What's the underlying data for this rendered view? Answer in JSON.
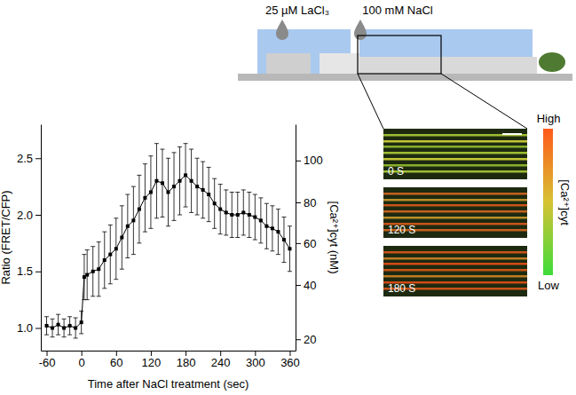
{
  "chart_data": {
    "type": "line",
    "x_label": "Time after NaCl treatment (sec)",
    "y_label": "Ratio (FRET/CFP)",
    "y2_label": "[Ca²⁺]cyt (nM)",
    "x": [
      -60,
      -50,
      -40,
      -30,
      -20,
      -10,
      0,
      5,
      10,
      20,
      30,
      40,
      50,
      60,
      70,
      80,
      90,
      100,
      110,
      120,
      130,
      140,
      150,
      160,
      170,
      180,
      190,
      200,
      210,
      220,
      230,
      240,
      250,
      260,
      270,
      280,
      290,
      300,
      310,
      320,
      330,
      340,
      350,
      360
    ],
    "series": [
      {
        "color": "#000000",
        "marker": "square",
        "line_style": "solid",
        "values": [
          1.02,
          1.0,
          1.03,
          1.0,
          1.02,
          1.0,
          1.05,
          1.45,
          1.47,
          1.5,
          1.52,
          1.6,
          1.65,
          1.7,
          1.8,
          1.9,
          1.95,
          2.05,
          2.15,
          2.2,
          2.3,
          2.28,
          2.2,
          2.25,
          2.3,
          2.35,
          2.3,
          2.25,
          2.22,
          2.18,
          2.1,
          2.05,
          2.02,
          2.0,
          2.0,
          2.02,
          2.0,
          1.98,
          1.95,
          1.9,
          1.88,
          1.85,
          1.78,
          1.7
        ],
        "errors": [
          0.08,
          0.08,
          0.09,
          0.08,
          0.08,
          0.09,
          0.1,
          0.2,
          0.22,
          0.22,
          0.24,
          0.25,
          0.26,
          0.27,
          0.28,
          0.28,
          0.3,
          0.3,
          0.3,
          0.32,
          0.33,
          0.3,
          0.3,
          0.3,
          0.3,
          0.28,
          0.28,
          0.25,
          0.25,
          0.24,
          0.22,
          0.22,
          0.2,
          0.2,
          0.2,
          0.2,
          0.2,
          0.2,
          0.2,
          0.2,
          0.2,
          0.2,
          0.2,
          0.2
        ]
      }
    ],
    "xlim": [
      -70,
      370
    ],
    "xticks": [
      -60,
      0,
      60,
      120,
      180,
      240,
      300,
      360
    ],
    "ylim": [
      0.8,
      2.8
    ],
    "yticks": [
      {
        "value": 1,
        "label": "1.0"
      },
      {
        "value": 1.5,
        "label": "1.5"
      },
      {
        "value": 2,
        "label": "2.0"
      },
      {
        "value": 2.5,
        "label": "2.5"
      }
    ],
    "y2lim": [
      16,
      117
    ],
    "y2ticks": [
      20,
      40,
      60,
      80,
      100
    ],
    "y2tick_ratios": [
      0.9,
      1.38,
      1.75,
      2.11,
      2.48
    ],
    "grid": false
  },
  "schematic": {
    "labels": [
      "25 µM LaCl₃",
      "100 mM NaCl"
    ]
  },
  "images": {
    "labels": [
      "0 S",
      "120 S",
      "180 S"
    ]
  },
  "color_bar": {
    "title": "[Ca²⁺]cyt",
    "high": "High",
    "low": "Low"
  }
}
